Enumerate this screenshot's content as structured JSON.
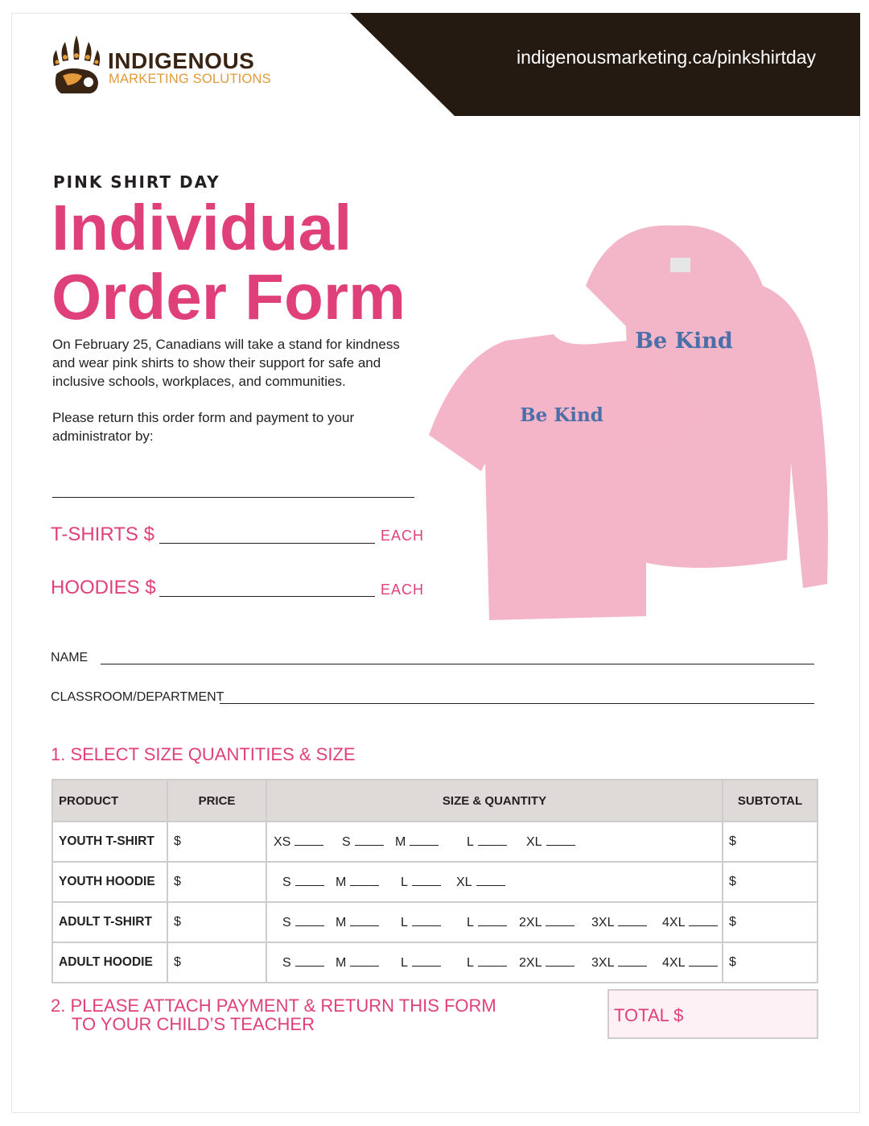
{
  "brand": {
    "name_line1": "INDIGENOUS",
    "name_line2": "MARKETING SOLUTIONS",
    "url": "indigenousmarketing.ca/pinkshirtday",
    "colors": {
      "pink": "#e0407a",
      "dark": "#241a12",
      "orange": "#e29a3a"
    }
  },
  "eyebrow": "PINK SHIRT DAY",
  "title_line1": "Individual",
  "title_line2": "Order Form",
  "intro": "On February 25, Canadians will take a stand for kindness and wear pink shirts to show their support for safe and inclusive schools, workplaces, and communities.",
  "return_note": "Please return this order form and payment to your administrator by:",
  "pricing": {
    "tshirts": "T-SHIRTS $",
    "hoodies": "HOODIES $",
    "each": "EACH"
  },
  "shirt_print": "Be Kind",
  "fields": {
    "name": "NAME",
    "classroom": "CLASSROOM/DEPARTMENT"
  },
  "section1": "1. SELECT SIZE QUANTITIES & SIZE",
  "table": {
    "headers": [
      "PRODUCT",
      "PRICE",
      "SIZE & QUANTITY",
      "SUBTOTAL"
    ],
    "rows": [
      {
        "product": "YOUTH T-SHIRT",
        "price": "$",
        "sizes": [
          "XS",
          "S",
          "M",
          "L",
          "XL"
        ],
        "subtotal": "$"
      },
      {
        "product": "YOUTH HOODIE",
        "price": "$",
        "sizes": [
          "S",
          "M",
          "L",
          "XL"
        ],
        "subtotal": "$"
      },
      {
        "product": "ADULT T-SHIRT",
        "price": "$",
        "sizes": [
          "S",
          "M",
          "L",
          "L",
          "2XL",
          "3XL",
          "4XL"
        ],
        "subtotal": "$"
      },
      {
        "product": "ADULT HOODIE",
        "price": "$",
        "sizes": [
          "S",
          "M",
          "L",
          "L",
          "2XL",
          "3XL",
          "4XL"
        ],
        "subtotal": "$"
      }
    ]
  },
  "section2_line1": "2. PLEASE ATTACH PAYMENT & RETURN THIS FORM",
  "section2_line2": "TO YOUR CHILD’S TEACHER",
  "total_label": "TOTAL $"
}
